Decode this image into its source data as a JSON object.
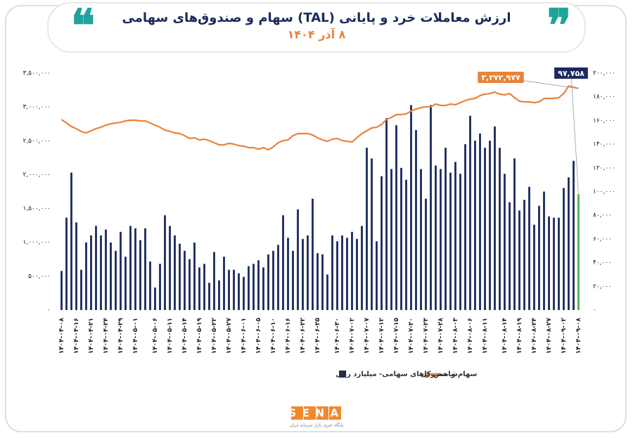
{
  "chart_data": {
    "type": "bar-line",
    "title": "ارزش معاملات خرد و پایانی (TAL) سهام و صندوق‌های سهامی",
    "subtitle": "۸ آذر ۱۴۰۴",
    "categories": [
      "۱۴۰۴-۰۴-۰۸",
      null,
      null,
      "۱۴۰۴-۰۴-۱۶",
      null,
      null,
      "۱۴۰۴-۰۴-۲۱",
      null,
      null,
      "۱۴۰۴-۰۴-۲۴",
      null,
      null,
      "۱۴۰۴-۰۴-۲۹",
      null,
      null,
      "۱۴۰۴-۰۵-۰۱",
      null,
      null,
      null,
      "۱۴۰۴-۰۵-۰۶",
      null,
      null,
      "۱۴۰۴-۰۵-۱۱",
      null,
      null,
      "۱۴۰۴-۰۵-۱۴",
      null,
      null,
      "۱۴۰۴-۰۵-۱۹",
      null,
      null,
      "۱۴۰۴-۰۵-۲۲",
      null,
      null,
      "۱۴۰۴-۰۵-۲۷",
      null,
      null,
      "۱۴۰۴-۰۶-۰۱",
      null,
      null,
      "۱۴۰۴-۰۶-۰۵",
      null,
      null,
      "۱۴۰۴-۰۶-۱۰",
      null,
      null,
      "۱۴۰۴-۰۶-۱۶",
      null,
      null,
      "۱۴۰۴-۰۶-۲۲",
      null,
      null,
      "۱۴۰۴-۰۶-۲۵",
      null,
      null,
      null,
      "۱۴۰۴-۰۶-۳۰",
      null,
      null,
      "۱۴۰۴-۰۷-۰۲",
      null,
      null,
      "۱۴۰۴-۰۷-۰۷",
      null,
      null,
      "۱۴۰۴-۰۷-۱۲",
      null,
      null,
      "۱۴۰۴-۰۷-۱۵",
      null,
      null,
      "۱۴۰۴-۰۷-۲۰",
      null,
      null,
      "۱۴۰۴-۰۷-۲۳",
      null,
      null,
      "۱۴۰۴-۰۷-۲۸",
      null,
      null,
      "۱۴۰۴-۰۸-۰۳",
      null,
      null,
      "۱۴۰۴-۰۸-۰۶",
      null,
      null,
      "۱۴۰۴-۰۸-۱۱",
      null,
      null,
      null,
      "۱۴۰۴-۰۸-۱۴",
      null,
      null,
      "۱۴۰۴-۰۸-۱۹",
      null,
      null,
      "۱۴۰۴-۰۸-۲۴",
      null,
      null,
      "۱۴۰۴-۰۸-۲۷",
      null,
      null,
      "۱۴۰۴-۰۹-۰۲",
      null,
      null,
      "۱۴۰۴-۰۹-۰۸"
    ],
    "series": [
      {
        "name": "سهام و صندوق‌های سهامی- میلیارد ریال",
        "type": "bar",
        "axis": "y2",
        "color": "#1b2a5c",
        "last_color": "#4cb050",
        "values": [
          33000,
          78000,
          116000,
          74000,
          34000,
          57000,
          63000,
          71000,
          63000,
          68000,
          57000,
          50000,
          66000,
          45000,
          71000,
          69000,
          59000,
          69000,
          41000,
          19000,
          39000,
          80000,
          71000,
          63000,
          56000,
          50000,
          43000,
          57000,
          36000,
          39000,
          23000,
          49000,
          25000,
          45000,
          34000,
          34000,
          31000,
          28000,
          37000,
          39000,
          42000,
          36000,
          47000,
          50000,
          55000,
          80000,
          61000,
          50000,
          85000,
          60000,
          63000,
          94000,
          48000,
          47000,
          30000,
          63000,
          58000,
          63000,
          61000,
          66000,
          60000,
          71000,
          137000,
          128000,
          58000,
          113000,
          162000,
          119000,
          156000,
          120000,
          110000,
          173000,
          152000,
          119000,
          94000,
          173000,
          122000,
          119000,
          137000,
          116000,
          125000,
          115000,
          140000,
          164000,
          143000,
          149000,
          137000,
          143000,
          155000,
          137000,
          115000,
          91000,
          128000,
          84000,
          93000,
          104000,
          72000,
          88000,
          100000,
          79000,
          78000,
          78000,
          103000,
          112000,
          126000,
          97758
        ],
        "value_labels": [
          null,
          null,
          null,
          null,
          null,
          null,
          null,
          null,
          null,
          null,
          null,
          null,
          null,
          null,
          null,
          null,
          null,
          null,
          null,
          null,
          null,
          null,
          null,
          null,
          null,
          null,
          null,
          null,
          null,
          null,
          null,
          null,
          null,
          null,
          null,
          null,
          null,
          null,
          null,
          null,
          null,
          null,
          null,
          null,
          null,
          null,
          null,
          null,
          null,
          null,
          null,
          null,
          null,
          null,
          null,
          null,
          null,
          null,
          null,
          null,
          null,
          null,
          null,
          null,
          null,
          null,
          null,
          null,
          null,
          null,
          null,
          null,
          null,
          null,
          null,
          null,
          null,
          null,
          null,
          null,
          null,
          null,
          null,
          null,
          null,
          null,
          null,
          null,
          null,
          null,
          null,
          null,
          null,
          null,
          null,
          null,
          null,
          null,
          null,
          null,
          null,
          null,
          null,
          null,
          null,
          "۹۷,۷۵۸"
        ]
      },
      {
        "name": "شاخص کل",
        "type": "line",
        "axis": "y",
        "color": "#e8833a",
        "values": [
          2815000,
          2763000,
          2711000,
          2680000,
          2638000,
          2617000,
          2648000,
          2680000,
          2700000,
          2731000,
          2752000,
          2763000,
          2773000,
          2794000,
          2804000,
          2804000,
          2794000,
          2794000,
          2763000,
          2731000,
          2700000,
          2659000,
          2638000,
          2617000,
          2607000,
          2576000,
          2534000,
          2545000,
          2513000,
          2524000,
          2503000,
          2472000,
          2441000,
          2441000,
          2462000,
          2451000,
          2430000,
          2420000,
          2399000,
          2399000,
          2378000,
          2399000,
          2368000,
          2409000,
          2472000,
          2503000,
          2513000,
          2576000,
          2607000,
          2607000,
          2607000,
          2586000,
          2545000,
          2513000,
          2493000,
          2524000,
          2534000,
          2503000,
          2493000,
          2482000,
          2545000,
          2607000,
          2648000,
          2690000,
          2700000,
          2742000,
          2815000,
          2846000,
          2887000,
          2887000,
          2898000,
          2939000,
          2970000,
          2991000,
          3002000,
          3002000,
          3043000,
          3022000,
          3022000,
          3043000,
          3033000,
          3064000,
          3095000,
          3116000,
          3126000,
          3168000,
          3189000,
          3199000,
          3220000,
          3189000,
          3178000,
          3199000,
          3137000,
          3085000,
          3075000,
          3075000,
          3064000,
          3075000,
          3126000,
          3126000,
          3126000,
          3137000,
          3199000,
          3310000,
          3290000,
          3272977
        ],
        "value_labels": [
          null,
          null,
          null,
          null,
          null,
          null,
          null,
          null,
          null,
          null,
          null,
          null,
          null,
          null,
          null,
          null,
          null,
          null,
          null,
          null,
          null,
          null,
          null,
          null,
          null,
          null,
          null,
          null,
          null,
          null,
          null,
          null,
          null,
          null,
          null,
          null,
          null,
          null,
          null,
          null,
          null,
          null,
          null,
          null,
          null,
          null,
          null,
          null,
          null,
          null,
          null,
          null,
          null,
          null,
          null,
          null,
          null,
          null,
          null,
          null,
          null,
          null,
          null,
          null,
          null,
          null,
          null,
          null,
          null,
          null,
          null,
          null,
          null,
          null,
          null,
          null,
          null,
          null,
          null,
          null,
          null,
          null,
          null,
          null,
          null,
          null,
          null,
          null,
          null,
          null,
          null,
          null,
          null,
          null,
          null,
          null,
          null,
          null,
          null,
          null,
          null,
          null,
          null,
          null,
          null,
          "۳,۲۷۲,۹۷۷"
        ]
      }
    ],
    "ylim": [
      0,
      3500000
    ],
    "yticks": [
      {
        "value": 0,
        "label": "۰"
      },
      {
        "value": 500000,
        "label": "۵۰۰,۰۰۰"
      },
      {
        "value": 1000000,
        "label": "۱,۰۰۰,۰۰۰"
      },
      {
        "value": 1500000,
        "label": "۱,۵۰۰,۰۰۰"
      },
      {
        "value": 2000000,
        "label": "۲,۰۰۰,۰۰۰"
      },
      {
        "value": 2500000,
        "label": "۲,۵۰۰,۰۰۰"
      },
      {
        "value": 3000000,
        "label": "۳,۰۰۰,۰۰۰"
      },
      {
        "value": 3500000,
        "label": "۳,۵۰۰,۰۰۰"
      }
    ],
    "y2lim": [
      0,
      200000
    ],
    "y2ticks": [
      {
        "value": 0,
        "label": "۰"
      },
      {
        "value": 20000,
        "label": "۲۰,۰۰۰"
      },
      {
        "value": 40000,
        "label": "۴۰,۰۰۰"
      },
      {
        "value": 60000,
        "label": "۶۰,۰۰۰"
      },
      {
        "value": 80000,
        "label": "۸۰,۰۰۰"
      },
      {
        "value": 100000,
        "label": "۱۰۰,۰۰۰"
      },
      {
        "value": 120000,
        "label": "۱۲۰,۰۰۰"
      },
      {
        "value": 140000,
        "label": "۱۴۰,۰۰۰"
      },
      {
        "value": 160000,
        "label": "۱۶۰,۰۰۰"
      },
      {
        "value": 180000,
        "label": "۱۸۰,۰۰۰"
      },
      {
        "value": 200000,
        "label": "۲۰۰,۰۰۰"
      }
    ],
    "grid": false,
    "legend": "bottom",
    "logo": "SENA",
    "logo_caption": "پایگاه خبری بازار سرمایه ایران"
  }
}
